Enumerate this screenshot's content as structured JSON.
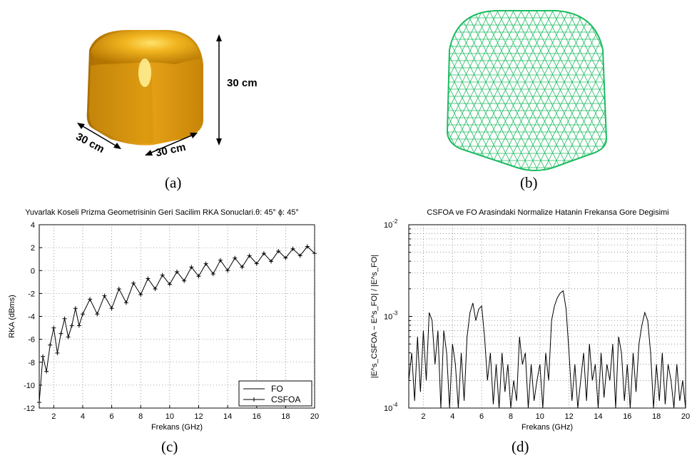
{
  "panels": {
    "a": "(a)",
    "b": "(b)",
    "c": "(c)",
    "d": "(d)"
  },
  "dimensions": {
    "height": "30 cm",
    "depth": "30 cm",
    "width": "30 cm"
  },
  "colors": {
    "object_fill": "#e8a317",
    "mesh": "#1dbb61",
    "line": "#000000",
    "grid": "#555555"
  },
  "chart_data": [
    {
      "type": "line",
      "title": "Yuvarlak Koseli Prizma Geometrisinin Geri Sacilim RKA Sonuclari.θ: 45° ϕ: 45°",
      "xlabel": "Frekans (GHz)",
      "ylabel": "RKA (dBms)",
      "xlim": [
        1,
        20
      ],
      "ylim": [
        -12,
        4
      ],
      "xticks": [
        2,
        4,
        6,
        8,
        10,
        12,
        14,
        16,
        18,
        20
      ],
      "yticks": [
        4,
        2,
        0,
        -2,
        -4,
        -6,
        -8,
        -10,
        -12
      ],
      "grid": true,
      "legend_position": "bottom-right",
      "series": [
        {
          "name": "FO",
          "marker": "none",
          "x": [
            1.0,
            1.25,
            1.5,
            1.75,
            2.0,
            2.25,
            2.5,
            2.75,
            3.0,
            3.25,
            3.5,
            3.75,
            4.0,
            4.5,
            5.0,
            5.5,
            6.0,
            6.5,
            7.0,
            7.5,
            8.0,
            8.5,
            9.0,
            9.5,
            10.0,
            10.5,
            11.0,
            11.5,
            12.0,
            12.5,
            13.0,
            13.5,
            14.0,
            14.5,
            15.0,
            15.5,
            16.0,
            16.5,
            17.0,
            17.5,
            18.0,
            18.5,
            19.0,
            19.5,
            20.0
          ],
          "y": [
            -11.5,
            -7.5,
            -8.8,
            -6.5,
            -5.0,
            -7.2,
            -5.5,
            -4.2,
            -5.8,
            -4.8,
            -3.3,
            -4.8,
            -3.8,
            -2.5,
            -3.8,
            -2.2,
            -3.3,
            -1.6,
            -2.8,
            -1.1,
            -2.1,
            -0.7,
            -1.6,
            -0.4,
            -1.2,
            -0.1,
            -0.9,
            0.3,
            -0.5,
            0.6,
            -0.3,
            0.9,
            0.0,
            1.1,
            0.3,
            1.3,
            0.6,
            1.5,
            0.8,
            1.7,
            1.1,
            1.9,
            1.3,
            2.1,
            1.5
          ]
        },
        {
          "name": "CSFOA",
          "marker": "+",
          "x": [
            1.0,
            1.25,
            1.5,
            1.75,
            2.0,
            2.25,
            2.5,
            2.75,
            3.0,
            3.25,
            3.5,
            3.75,
            4.0,
            4.5,
            5.0,
            5.5,
            6.0,
            6.5,
            7.0,
            7.5,
            8.0,
            8.5,
            9.0,
            9.5,
            10.0,
            10.5,
            11.0,
            11.5,
            12.0,
            12.5,
            13.0,
            13.5,
            14.0,
            14.5,
            15.0,
            15.5,
            16.0,
            16.5,
            17.0,
            17.5,
            18.0,
            18.5,
            19.0,
            19.5,
            20.0
          ],
          "y": [
            -11.5,
            -7.5,
            -8.8,
            -6.5,
            -5.0,
            -7.2,
            -5.5,
            -4.2,
            -5.8,
            -4.8,
            -3.3,
            -4.8,
            -3.8,
            -2.5,
            -3.8,
            -2.2,
            -3.3,
            -1.6,
            -2.8,
            -1.1,
            -2.1,
            -0.7,
            -1.6,
            -0.4,
            -1.2,
            -0.1,
            -0.9,
            0.3,
            -0.5,
            0.6,
            -0.3,
            0.9,
            0.0,
            1.1,
            0.3,
            1.3,
            0.6,
            1.5,
            0.8,
            1.7,
            1.1,
            1.9,
            1.3,
            2.1,
            1.5
          ]
        }
      ]
    },
    {
      "type": "line",
      "title": "CSFOA ve FO Arasindaki Normalize Hatanin Frekansa Gore Degisimi",
      "xlabel": "Frekans (GHz)",
      "ylabel": "|E^s_CSFOA − E^s_FO| / |E^s_FO|",
      "xlim": [
        1,
        20
      ],
      "ylim": [
        0.0001,
        0.01
      ],
      "yscale": "log",
      "xticks": [
        2,
        4,
        6,
        8,
        10,
        12,
        14,
        16,
        18,
        20
      ],
      "yticks": [
        "10^-2",
        "10^-3",
        "10^-4"
      ],
      "grid": true,
      "series": [
        {
          "x": [
            1.0,
            1.2,
            1.4,
            1.6,
            1.8,
            2.0,
            2.2,
            2.4,
            2.6,
            2.8,
            3.0,
            3.2,
            3.4,
            3.6,
            3.8,
            4.0,
            4.2,
            4.4,
            4.6,
            4.8,
            5.0,
            5.2,
            5.4,
            5.6,
            5.8,
            6.0,
            6.2,
            6.4,
            6.6,
            6.8,
            7.0,
            7.2,
            7.4,
            7.6,
            7.8,
            8.0,
            8.2,
            8.4,
            8.6,
            8.8,
            9.0,
            9.2,
            9.4,
            9.6,
            9.8,
            10.0,
            10.2,
            10.4,
            10.6,
            10.8,
            11.0,
            11.2,
            11.4,
            11.6,
            11.8,
            12.0,
            12.2,
            12.4,
            12.6,
            12.8,
            13.0,
            13.2,
            13.4,
            13.6,
            13.8,
            14.0,
            14.2,
            14.4,
            14.6,
            14.8,
            15.0,
            15.2,
            15.4,
            15.6,
            15.8,
            16.0,
            16.2,
            16.4,
            16.6,
            16.8,
            17.0,
            17.2,
            17.4,
            17.6,
            17.8,
            18.0,
            18.2,
            18.4,
            18.6,
            18.8,
            19.0,
            19.2,
            19.4,
            19.6,
            19.8,
            20.0
          ],
          "y": [
            0.0002,
            0.0004,
            0.00012,
            0.0006,
            0.00015,
            0.0007,
            0.0002,
            0.0011,
            0.0009,
            0.0003,
            0.0007,
            0.0001,
            0.0007,
            0.0004,
            0.0001,
            0.0005,
            0.0003,
            0.0001,
            0.0004,
            0.00012,
            0.0006,
            0.0011,
            0.0014,
            0.0009,
            0.0012,
            0.0013,
            0.0006,
            0.0002,
            0.0004,
            0.00011,
            0.0003,
            0.0001,
            0.0004,
            0.00015,
            0.0003,
            0.0001,
            0.0002,
            0.00012,
            0.0006,
            0.0003,
            0.0004,
            0.0001,
            0.0003,
            0.00012,
            0.0002,
            0.0003,
            0.0001,
            0.0004,
            0.0002,
            0.0009,
            0.0013,
            0.0016,
            0.0018,
            0.0019,
            0.0012,
            0.0004,
            0.00012,
            0.0003,
            0.0001,
            0.0002,
            0.0004,
            0.00012,
            0.0005,
            0.0002,
            0.0003,
            0.0001,
            0.0004,
            0.00013,
            0.0003,
            0.0002,
            0.0005,
            0.0001,
            0.0006,
            0.0004,
            0.00012,
            0.0003,
            0.0001,
            0.0004,
            0.00015,
            0.0005,
            0.0008,
            0.0011,
            0.0009,
            0.0004,
            0.0001,
            0.0003,
            0.00012,
            0.0004,
            0.00011,
            0.0003,
            0.0002,
            0.0001,
            0.0003,
            0.00012,
            0.0002,
            0.0001
          ]
        }
      ]
    }
  ]
}
